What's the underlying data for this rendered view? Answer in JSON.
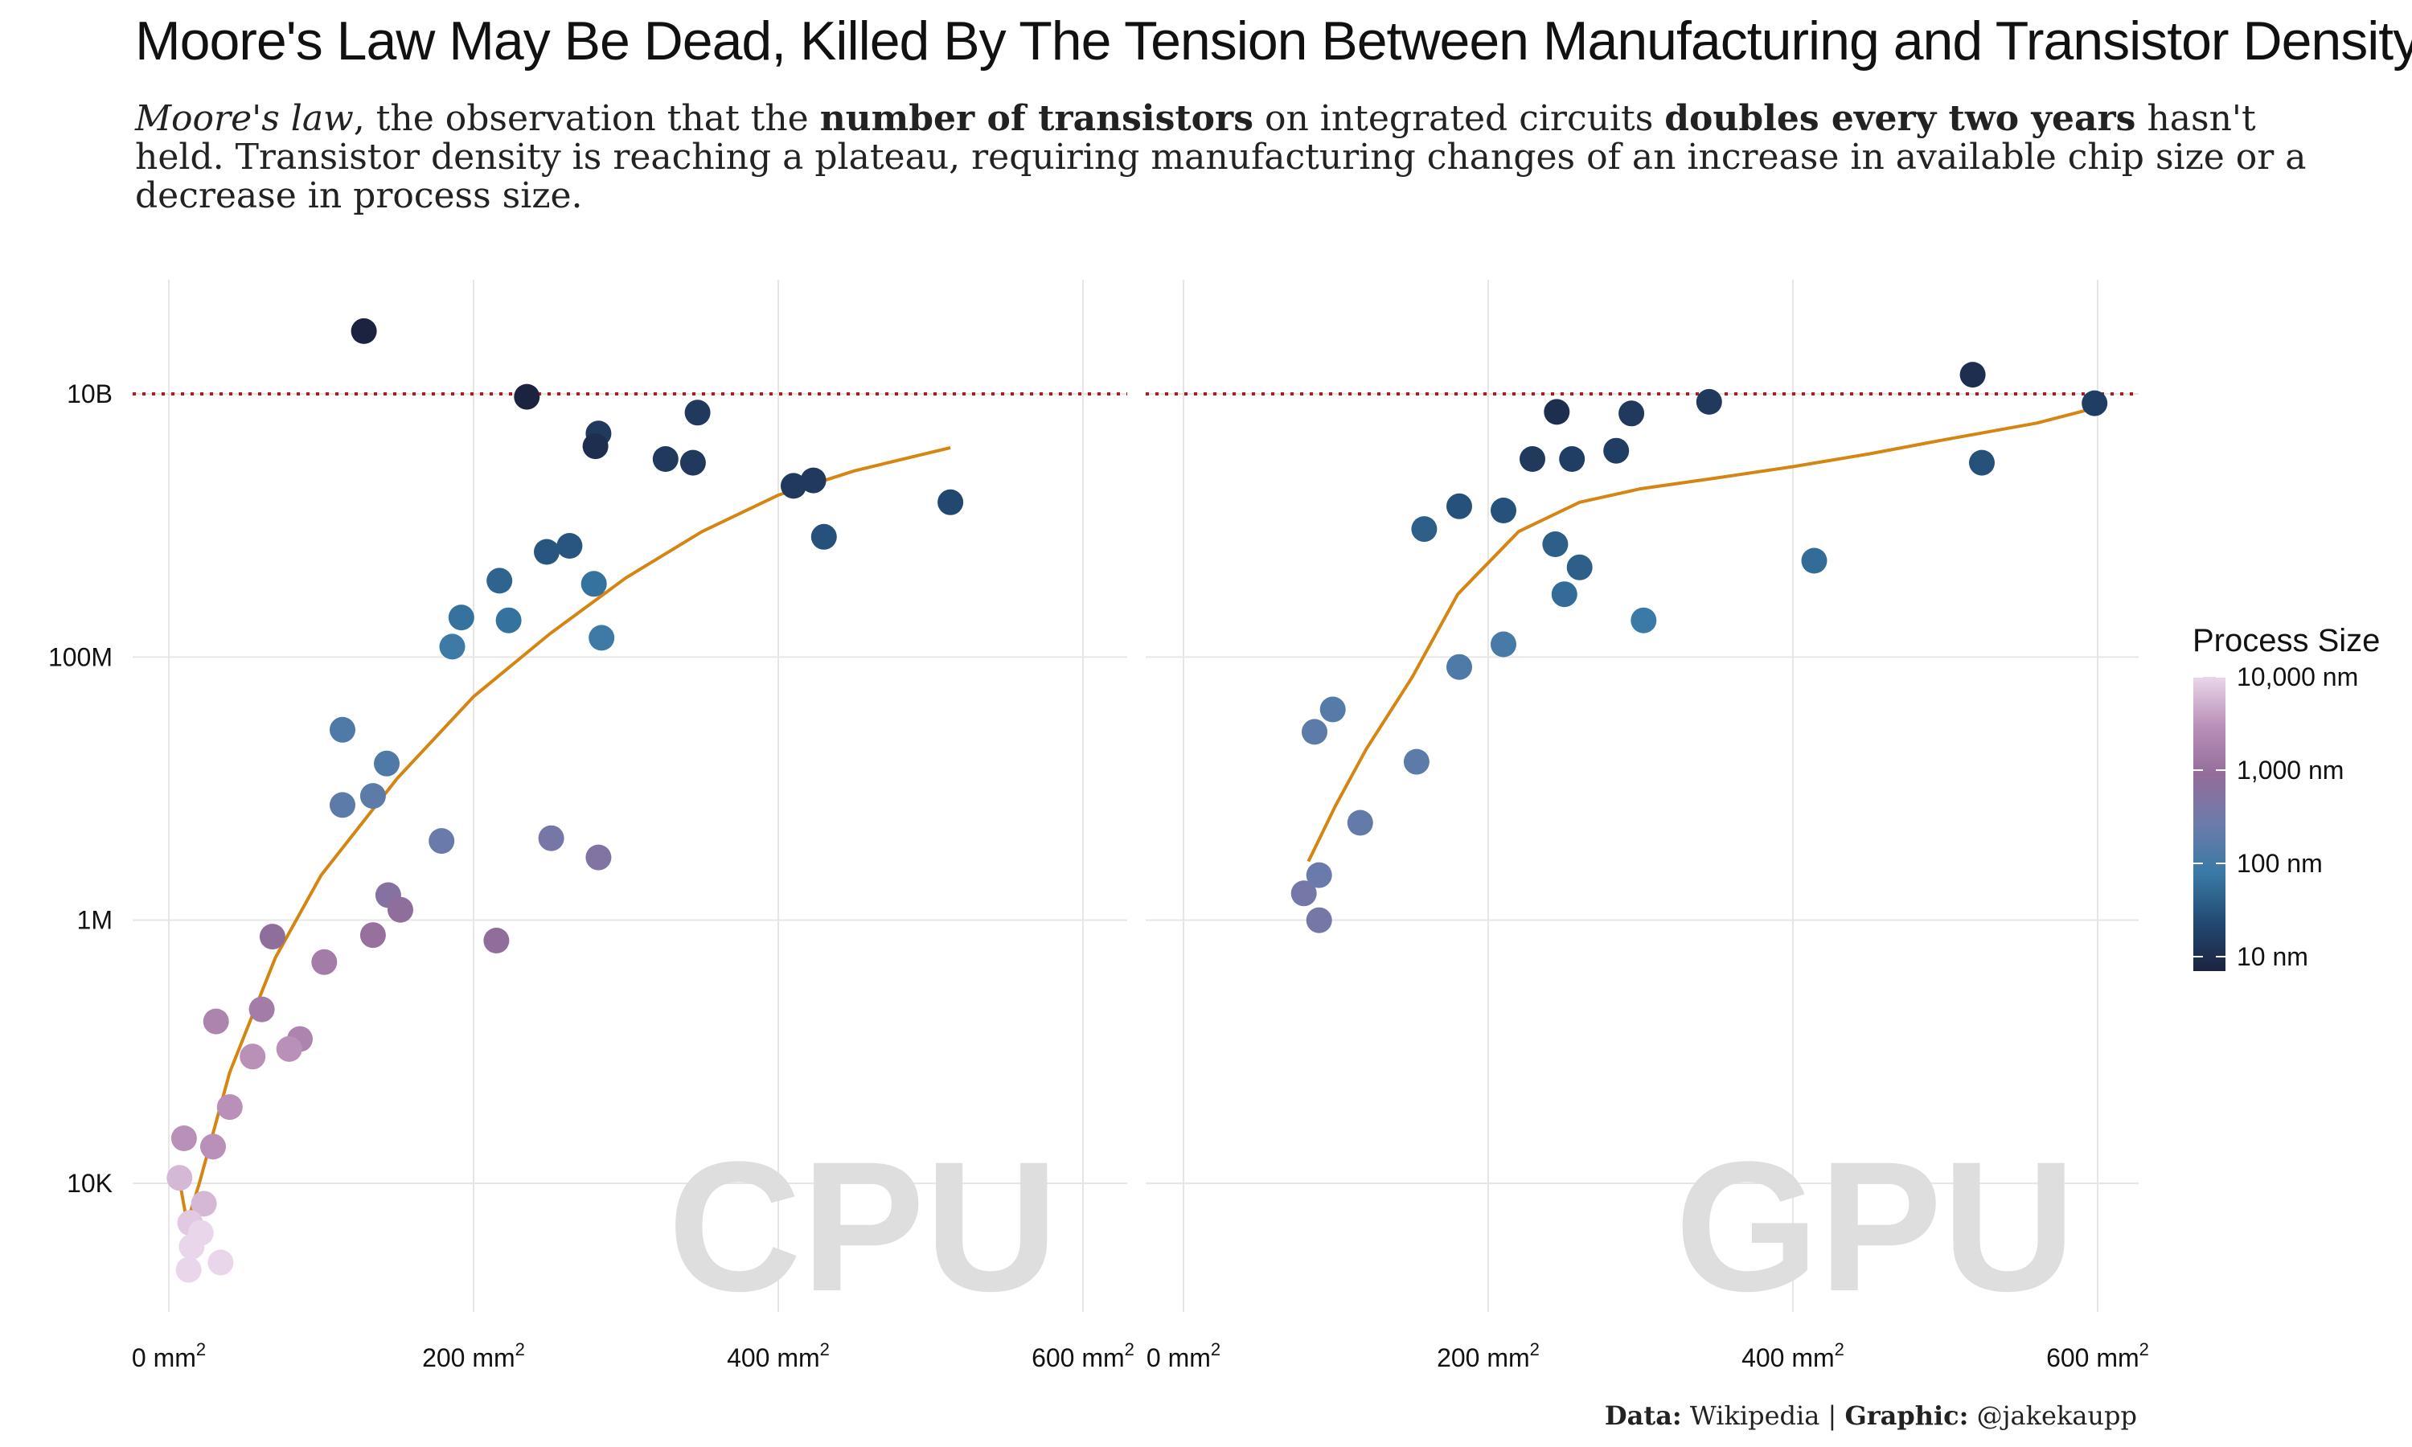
{
  "header": {
    "title": "Moore's Law May Be Dead, Killed By The Tension Between Manufacturing and Transistor Density",
    "subtitle_segments": [
      {
        "text": "Moore's law",
        "style": "italic"
      },
      {
        "text": ", the observation that the ",
        "style": "normal"
      },
      {
        "text": "number of transistors",
        "style": "bold"
      },
      {
        "text": " on integrated circuits ",
        "style": "normal"
      },
      {
        "text": "doubles every two years",
        "style": "bold"
      },
      {
        "text": " hasn't held. Transistor density is reaching a plateau, requiring manufacturing changes of an increase in available chip size or a decrease in process size.",
        "style": "normal"
      }
    ]
  },
  "caption": {
    "data_label": "Data:",
    "data_value": "Wikipedia",
    "separator": "|",
    "graphic_label": "Graphic:",
    "graphic_value": "@jakekaupp"
  },
  "colors": {
    "reference_line": "#c0141c",
    "trend_line": "#d58512",
    "grid": "#e6e6e6",
    "watermark": "#dedede",
    "scale": [
      "#1b2340",
      "#234a73",
      "#3a7aa6",
      "#6c7bab",
      "#936d9a",
      "#b990b8",
      "#ead6ea"
    ]
  },
  "chart_data": {
    "type": "scatter",
    "x_unit": "mm²",
    "y_scale": "log",
    "y_tick_labels": [
      "10K",
      "1M",
      "100M",
      "10B"
    ],
    "y_tick_values": [
      10000,
      1000000,
      100000000,
      10000000000
    ],
    "x_tick_values": [
      0,
      200,
      400,
      600
    ],
    "x_tick_label_number": [
      "0 mm",
      "200 mm",
      "400 mm",
      "600 mm"
    ],
    "x_tick_label_sup": "2",
    "reference_line_y": 10000000000,
    "panels": [
      {
        "name": "CPU",
        "xlim": [
          -6,
          628
        ],
        "points": [
          {
            "area": 128,
            "transistors": 30000000000,
            "process_nm": 7
          },
          {
            "area": 235,
            "transistors": 9500000000,
            "process_nm": 7
          },
          {
            "area": 282,
            "transistors": 5000000000,
            "process_nm": 14
          },
          {
            "area": 280,
            "transistors": 4000000000,
            "process_nm": 10
          },
          {
            "area": 347,
            "transistors": 7200000000,
            "process_nm": 14
          },
          {
            "area": 326,
            "transistors": 3200000000,
            "process_nm": 14
          },
          {
            "area": 344,
            "transistors": 3000000000,
            "process_nm": 14
          },
          {
            "area": 410,
            "transistors": 2000000000,
            "process_nm": 14
          },
          {
            "area": 423,
            "transistors": 2200000000,
            "process_nm": 14
          },
          {
            "area": 430,
            "transistors": 820000000,
            "process_nm": 28
          },
          {
            "area": 513,
            "transistors": 1500000000,
            "process_nm": 22
          },
          {
            "area": 248,
            "transistors": 630000000,
            "process_nm": 32
          },
          {
            "area": 263,
            "transistors": 700000000,
            "process_nm": 32
          },
          {
            "area": 217,
            "transistors": 380000000,
            "process_nm": 45
          },
          {
            "area": 279,
            "transistors": 360000000,
            "process_nm": 65
          },
          {
            "area": 192,
            "transistors": 200000000,
            "process_nm": 65
          },
          {
            "area": 223,
            "transistors": 190000000,
            "process_nm": 65
          },
          {
            "area": 186,
            "transistors": 120000000,
            "process_nm": 90
          },
          {
            "area": 284,
            "transistors": 140000000,
            "process_nm": 90
          },
          {
            "area": 114,
            "transistors": 28000000,
            "process_nm": 130
          },
          {
            "area": 143,
            "transistors": 15500000,
            "process_nm": 130
          },
          {
            "area": 134,
            "transistors": 8800000,
            "process_nm": 180
          },
          {
            "area": 114,
            "transistors": 7500000,
            "process_nm": 180
          },
          {
            "area": 179,
            "transistors": 4000000,
            "process_nm": 250
          },
          {
            "area": 251,
            "transistors": 4200000,
            "process_nm": 350
          },
          {
            "area": 282,
            "transistors": 3000000,
            "process_nm": 500
          },
          {
            "area": 144,
            "transistors": 1550000,
            "process_nm": 600
          },
          {
            "area": 152,
            "transistors": 1200000,
            "process_nm": 800
          },
          {
            "area": 68,
            "transistors": 750000,
            "process_nm": 800
          },
          {
            "area": 134,
            "transistors": 770000,
            "process_nm": 1000
          },
          {
            "area": 215,
            "transistors": 700000,
            "process_nm": 800
          },
          {
            "area": 102,
            "transistors": 480000,
            "process_nm": 1500
          },
          {
            "area": 61,
            "transistors": 210000,
            "process_nm": 1500
          },
          {
            "area": 31,
            "transistors": 170000,
            "process_nm": 2000
          },
          {
            "area": 86,
            "transistors": 125000,
            "process_nm": 2000
          },
          {
            "area": 79,
            "transistors": 105000,
            "process_nm": 3000
          },
          {
            "area": 55,
            "transistors": 92000,
            "process_nm": 3000
          },
          {
            "area": 40,
            "transistors": 38000,
            "process_nm": 3000
          },
          {
            "area": 10,
            "transistors": 22000,
            "process_nm": 3000
          },
          {
            "area": 29,
            "transistors": 19000,
            "process_nm": 3000
          },
          {
            "area": 7,
            "transistors": 11000,
            "process_nm": 6000
          },
          {
            "area": 23,
            "transistors": 7000,
            "process_nm": 6000
          },
          {
            "area": 14,
            "transistors": 5000,
            "process_nm": 8000
          },
          {
            "area": 21,
            "transistors": 4200,
            "process_nm": 10000
          },
          {
            "area": 15,
            "transistors": 3300,
            "process_nm": 10000
          },
          {
            "area": 34,
            "transistors": 2500,
            "process_nm": 10000
          },
          {
            "area": 13,
            "transistors": 2200,
            "process_nm": 10000
          }
        ],
        "trend": [
          [
            8,
            9000
          ],
          [
            12,
            5000
          ],
          [
            20,
            10000
          ],
          [
            40,
            70000
          ],
          [
            70,
            520000
          ],
          [
            100,
            2200000
          ],
          [
            150,
            12000000
          ],
          [
            200,
            50000000
          ],
          [
            250,
            150000000
          ],
          [
            300,
            400000000
          ],
          [
            350,
            900000000
          ],
          [
            400,
            1700000000
          ],
          [
            450,
            2600000000
          ],
          [
            513,
            3900000000
          ]
        ]
      },
      {
        "name": "GPU",
        "xlim": [
          -6,
          628
        ],
        "points": [
          {
            "area": 518,
            "transistors": 14000000000,
            "process_nm": 10
          },
          {
            "area": 245,
            "transistors": 7300000000,
            "process_nm": 10
          },
          {
            "area": 294,
            "transistors": 7100000000,
            "process_nm": 14
          },
          {
            "area": 345,
            "transistors": 8700000000,
            "process_nm": 14
          },
          {
            "area": 598,
            "transistors": 8500000000,
            "process_nm": 16
          },
          {
            "area": 229,
            "transistors": 3200000000,
            "process_nm": 14
          },
          {
            "area": 255,
            "transistors": 3200000000,
            "process_nm": 16
          },
          {
            "area": 284,
            "transistors": 3700000000,
            "process_nm": 16
          },
          {
            "area": 524,
            "transistors": 3000000000,
            "process_nm": 28
          },
          {
            "area": 181,
            "transistors": 1400000000,
            "process_nm": 28
          },
          {
            "area": 210,
            "transistors": 1300000000,
            "process_nm": 28
          },
          {
            "area": 158,
            "transistors": 940000000,
            "process_nm": 40
          },
          {
            "area": 244,
            "transistors": 720000000,
            "process_nm": 40
          },
          {
            "area": 260,
            "transistors": 480000000,
            "process_nm": 40
          },
          {
            "area": 414,
            "transistors": 540000000,
            "process_nm": 55
          },
          {
            "area": 250,
            "transistors": 300000000,
            "process_nm": 55
          },
          {
            "area": 302,
            "transistors": 190000000,
            "process_nm": 80
          },
          {
            "area": 210,
            "transistors": 125000000,
            "process_nm": 110
          },
          {
            "area": 181,
            "transistors": 84000000,
            "process_nm": 130
          },
          {
            "area": 153,
            "transistors": 16000000,
            "process_nm": 180
          },
          {
            "area": 98,
            "transistors": 40000000,
            "process_nm": 150
          },
          {
            "area": 86,
            "transistors": 27000000,
            "process_nm": 180
          },
          {
            "area": 116,
            "transistors": 5500000,
            "process_nm": 220
          },
          {
            "area": 89,
            "transistors": 2200000,
            "process_nm": 250
          },
          {
            "area": 79,
            "transistors": 1600000,
            "process_nm": 350
          },
          {
            "area": 89,
            "transistors": 1000000,
            "process_nm": 350
          }
        ],
        "trend": [
          [
            82,
            2800000
          ],
          [
            100,
            7500000
          ],
          [
            120,
            20000000
          ],
          [
            150,
            70000000
          ],
          [
            180,
            300000000
          ],
          [
            220,
            900000000
          ],
          [
            260,
            1500000000
          ],
          [
            300,
            1900000000
          ],
          [
            350,
            2300000000
          ],
          [
            400,
            2800000000
          ],
          [
            450,
            3500000000
          ],
          [
            500,
            4500000000
          ],
          [
            560,
            6000000000
          ],
          [
            598,
            7800000000
          ]
        ]
      }
    ],
    "legend": {
      "title": "Process Size",
      "labels": [
        "10,000 nm",
        "1,000 nm",
        "100 nm",
        "10 nm"
      ],
      "values_nm": [
        10000,
        1000,
        100,
        10
      ],
      "range_nm": [
        7,
        10000
      ]
    }
  }
}
